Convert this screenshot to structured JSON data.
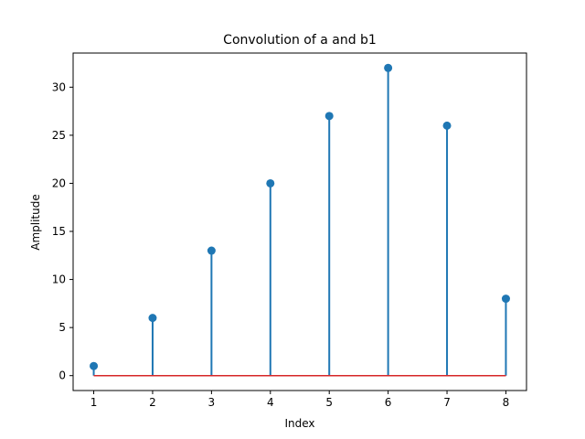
{
  "chart_data": {
    "type": "stem",
    "title": "Convolution of a and b1",
    "xlabel": "Index",
    "ylabel": "Amplitude",
    "x": [
      1,
      2,
      3,
      4,
      5,
      6,
      7,
      8
    ],
    "values": [
      1,
      6,
      13,
      20,
      27,
      32,
      26,
      8
    ],
    "xticks": [
      1,
      2,
      3,
      4,
      5,
      6,
      7,
      8
    ],
    "yticks": [
      0,
      5,
      10,
      15,
      20,
      25,
      30
    ],
    "xlim": [
      0.65,
      8.35
    ],
    "ylim": [
      -1.55,
      33.55
    ],
    "baseline": 0,
    "grid": false,
    "colors": {
      "stem": "#1f77b4",
      "marker": "#1f77b4",
      "baseline": "#d62728"
    }
  }
}
